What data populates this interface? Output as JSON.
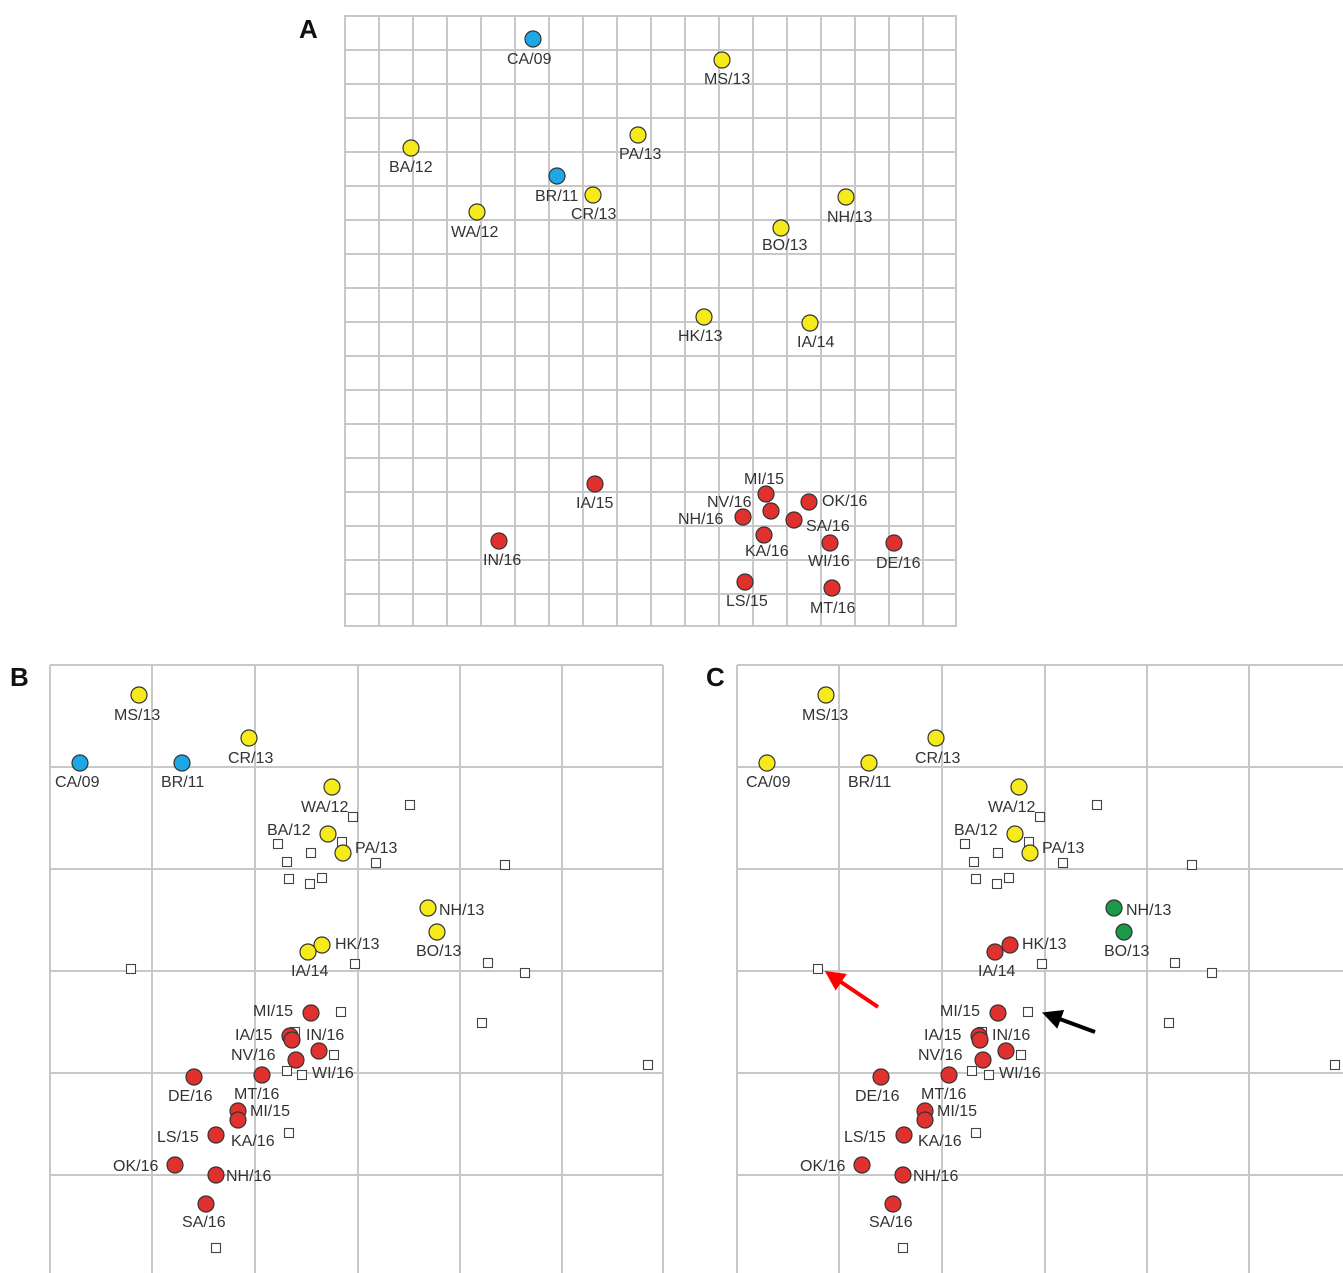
{
  "colors": {
    "yellow": "#f7ea1b",
    "blue": "#1ea7e6",
    "red": "#e0312f",
    "green": "#1a9a4a",
    "grid": "#c8c8c8",
    "arrow_red": "#ff0000",
    "arrow_black": "#000000"
  },
  "panels": [
    {
      "id": "A",
      "letter": "A",
      "points": [
        {
          "label": "CA/09",
          "color": "blue"
        },
        {
          "label": "MS/13",
          "color": "yellow"
        },
        {
          "label": "BA/12",
          "color": "yellow"
        },
        {
          "label": "PA/13",
          "color": "yellow"
        },
        {
          "label": "BR/11",
          "color": "blue"
        },
        {
          "label": "CR/13",
          "color": "yellow"
        },
        {
          "label": "NH/13",
          "color": "yellow"
        },
        {
          "label": "WA/12",
          "color": "yellow"
        },
        {
          "label": "BO/13",
          "color": "yellow"
        },
        {
          "label": "HK/13",
          "color": "yellow"
        },
        {
          "label": "IA/14",
          "color": "yellow"
        },
        {
          "label": "IA/15",
          "color": "red"
        },
        {
          "label": "MI/15",
          "color": "red"
        },
        {
          "label": "NV/16",
          "color": "red"
        },
        {
          "label": "OK/16",
          "color": "red"
        },
        {
          "label": "NH/16",
          "color": "red"
        },
        {
          "label": "SA/16",
          "color": "red"
        },
        {
          "label": "KA/16",
          "color": "red"
        },
        {
          "label": "IN/16",
          "color": "red"
        },
        {
          "label": "WI/16",
          "color": "red"
        },
        {
          "label": "DE/16",
          "color": "red"
        },
        {
          "label": "LS/15",
          "color": "red"
        },
        {
          "label": "MT/16",
          "color": "red"
        }
      ]
    },
    {
      "id": "B",
      "letter": "B",
      "points": [
        {
          "label": "MS/13",
          "color": "yellow"
        },
        {
          "label": "CR/13",
          "color": "yellow"
        },
        {
          "label": "CA/09",
          "color": "blue"
        },
        {
          "label": "BR/11",
          "color": "blue"
        },
        {
          "label": "WA/12",
          "color": "yellow"
        },
        {
          "label": "BA/12",
          "color": "yellow"
        },
        {
          "label": "PA/13",
          "color": "yellow"
        },
        {
          "label": "NH/13",
          "color": "yellow"
        },
        {
          "label": "BO/13",
          "color": "yellow"
        },
        {
          "label": "HK/13",
          "color": "yellow"
        },
        {
          "label": "IA/14",
          "color": "yellow"
        },
        {
          "label": "MI/15",
          "color": "red"
        },
        {
          "label": "IA/15",
          "color": "red"
        },
        {
          "label": "IN/16",
          "color": "red"
        },
        {
          "label": "NV/16",
          "color": "red"
        },
        {
          "label": "WI/16",
          "color": "red"
        },
        {
          "label": "DE/16",
          "color": "red"
        },
        {
          "label": "MT/16",
          "color": "red"
        },
        {
          "label": "MI/15",
          "color": "red"
        },
        {
          "label": "LS/15",
          "color": "red"
        },
        {
          "label": "KA/16",
          "color": "red"
        },
        {
          "label": "OK/16",
          "color": "red"
        },
        {
          "label": "NH/16",
          "color": "red"
        },
        {
          "label": "SA/16",
          "color": "red"
        }
      ],
      "squares": 26
    },
    {
      "id": "C",
      "letter": "C",
      "points": [
        {
          "label": "MS/13",
          "color": "yellow"
        },
        {
          "label": "CR/13",
          "color": "yellow"
        },
        {
          "label": "CA/09",
          "color": "yellow"
        },
        {
          "label": "BR/11",
          "color": "yellow"
        },
        {
          "label": "WA/12",
          "color": "yellow"
        },
        {
          "label": "BA/12",
          "color": "yellow"
        },
        {
          "label": "PA/13",
          "color": "yellow"
        },
        {
          "label": "NH/13",
          "color": "green"
        },
        {
          "label": "BO/13",
          "color": "green"
        },
        {
          "label": "HK/13",
          "color": "red"
        },
        {
          "label": "IA/14",
          "color": "red"
        },
        {
          "label": "MI/15",
          "color": "red"
        },
        {
          "label": "IA/15",
          "color": "red"
        },
        {
          "label": "IN/16",
          "color": "red"
        },
        {
          "label": "NV/16",
          "color": "red"
        },
        {
          "label": "WI/16",
          "color": "red"
        },
        {
          "label": "DE/16",
          "color": "red"
        },
        {
          "label": "MT/16",
          "color": "red"
        },
        {
          "label": "MI/15",
          "color": "red"
        },
        {
          "label": "LS/15",
          "color": "red"
        },
        {
          "label": "KA/16",
          "color": "red"
        },
        {
          "label": "OK/16",
          "color": "red"
        },
        {
          "label": "NH/16",
          "color": "red"
        },
        {
          "label": "SA/16",
          "color": "red"
        }
      ],
      "squares": 26,
      "arrows": [
        {
          "color": "arrow_red"
        },
        {
          "color": "arrow_black"
        }
      ]
    }
  ]
}
